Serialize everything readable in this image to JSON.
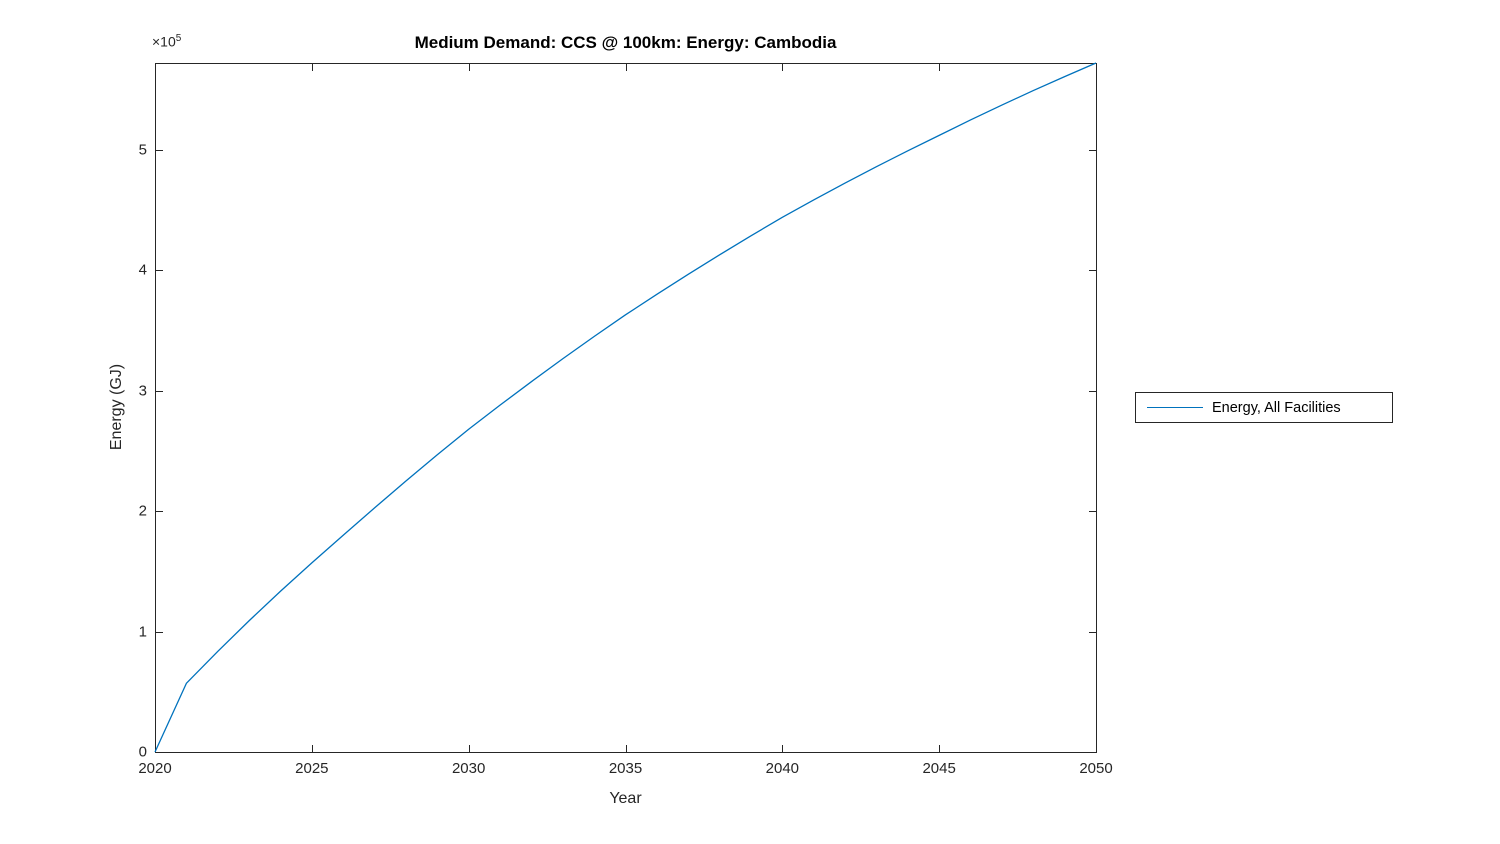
{
  "chart": {
    "title": "Medium Demand: CCS @ 100km: Energy: Cambodia"
  },
  "legend": {
    "items": [
      {
        "label": "Energy, All Facilities",
        "color": "#0072BD"
      }
    ]
  },
  "colors": {
    "line": "#0072BD",
    "axis": "#262626",
    "background": "#ffffff"
  },
  "chart_data": {
    "type": "line",
    "title": "Medium Demand: CCS @ 100km: Energy: Cambodia",
    "xlabel": "Year",
    "ylabel": "Energy (GJ)",
    "y_axis_multiplier_base": "×10",
    "y_axis_multiplier_exponent": "5",
    "x": [
      2020,
      2021,
      2022,
      2023,
      2024,
      2025,
      2026,
      2027,
      2028,
      2029,
      2030,
      2031,
      2032,
      2033,
      2034,
      2035,
      2036,
      2037,
      2038,
      2039,
      2040,
      2041,
      2042,
      2043,
      2044,
      2045,
      2046,
      2047,
      2048,
      2049,
      2050
    ],
    "series": [
      {
        "name": "Energy, All Facilities",
        "color": "#0072BD",
        "values": [
          0,
          57000,
          83500,
          109000,
          133500,
          157000,
          180000,
          202700,
          225000,
          246800,
          268000,
          288000,
          307500,
          326500,
          345000,
          363000,
          380000,
          396600,
          412800,
          428600,
          444000,
          458400,
          472400,
          486000,
          499200,
          512000,
          524800,
          537200,
          549200,
          560800,
          572100
        ]
      }
    ],
    "x_ticks": [
      2020,
      2025,
      2030,
      2035,
      2040,
      2045,
      2050
    ],
    "y_ticks": [
      0,
      1,
      2,
      3,
      4,
      5
    ],
    "y_tick_unit": 100000,
    "xlim": [
      2020,
      2050
    ],
    "ylim": [
      0,
      572100
    ],
    "grid": false,
    "legend_position": "right-outside"
  }
}
